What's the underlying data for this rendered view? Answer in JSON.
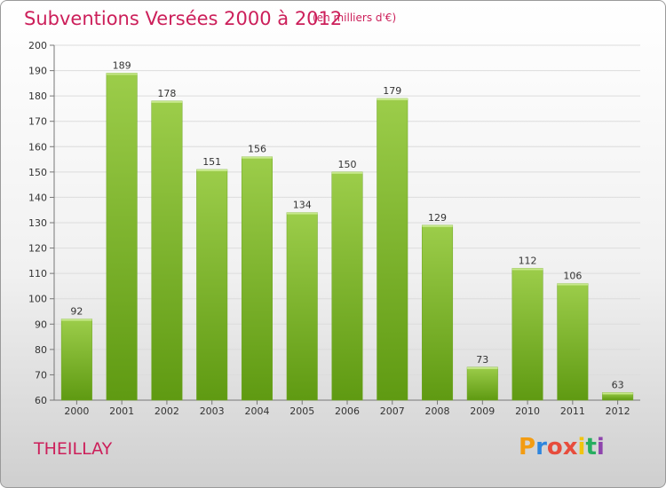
{
  "header": {
    "title": "Subventions Versées 2000 à 2012",
    "subtitle": "(en milliers d'€)"
  },
  "footer": {
    "commune": "THEILLAY",
    "logo_letters": [
      "P",
      "r",
      "o",
      "x",
      "i",
      "t",
      "i"
    ],
    "logo_colors": [
      "#f39c12",
      "#2e86de",
      "#e74c3c",
      "#e74c3c",
      "#f1c40f",
      "#27ae60",
      "#8e44ad"
    ]
  },
  "chart_data": {
    "type": "bar",
    "categories": [
      "2000",
      "2001",
      "2002",
      "2003",
      "2004",
      "2005",
      "2006",
      "2007",
      "2008",
      "2009",
      "2010",
      "2011",
      "2012"
    ],
    "values": [
      92,
      189,
      178,
      151,
      156,
      134,
      150,
      179,
      129,
      73,
      112,
      106,
      63
    ],
    "data_labels": [
      "92",
      "189",
      "178",
      "151",
      "156",
      "134",
      "150",
      "179",
      "129",
      "73",
      "112",
      "106",
      "63"
    ],
    "ylim": [
      60,
      200
    ],
    "yticks": [
      60,
      70,
      80,
      90,
      100,
      110,
      120,
      130,
      140,
      150,
      160,
      170,
      180,
      190,
      200
    ],
    "grid": true,
    "bar_color_top": "#9ccd4a",
    "bar_color_bottom": "#5f9a12"
  }
}
